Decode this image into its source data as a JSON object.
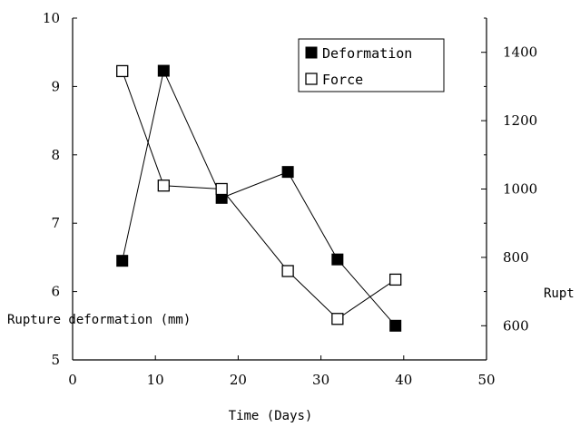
{
  "chart_data": {
    "type": "line",
    "xlabel": "Time (Days)",
    "ylabel": "Rupture deformation (mm)",
    "y2label": "Rupt",
    "xlim": [
      0,
      50
    ],
    "ylim": [
      5,
      10
    ],
    "y2lim": [
      500,
      1500
    ],
    "x_ticks": [
      0,
      10,
      20,
      30,
      40,
      50
    ],
    "y_ticks": [
      5,
      6,
      7,
      8,
      9,
      10
    ],
    "y2_ticks": [
      600,
      800,
      1000,
      1200,
      1400
    ],
    "grid": false,
    "legend_position": "top-right",
    "series": [
      {
        "name": "Deformation",
        "axis": "left",
        "marker": "filled-square",
        "x": [
          6,
          11,
          18,
          26,
          32,
          39
        ],
        "y": [
          6.45,
          9.23,
          7.37,
          7.75,
          6.47,
          5.5
        ]
      },
      {
        "name": "Force",
        "axis": "right",
        "marker": "open-square",
        "x": [
          6,
          11,
          18,
          26,
          32,
          39
        ],
        "y": [
          1345,
          1010,
          1000,
          760,
          620,
          735
        ]
      }
    ]
  }
}
